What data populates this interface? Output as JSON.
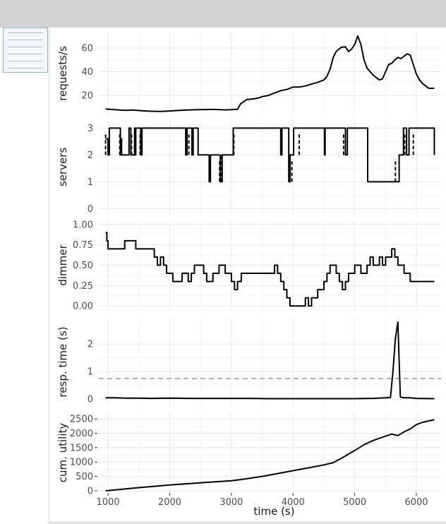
{
  "window": {
    "title": ""
  },
  "chart_data": [
    {
      "type": "line",
      "id": "requests",
      "ylabel": "requests/s",
      "yticks": [
        20,
        40,
        60
      ],
      "ylim": [
        4,
        73
      ],
      "x": [
        960,
        1100,
        1200,
        1300,
        1400,
        1500,
        1600,
        1700,
        1800,
        1900,
        2000,
        2100,
        2200,
        2300,
        2400,
        2500,
        2600,
        2700,
        2800,
        2900,
        3000,
        3100,
        3150,
        3250,
        3350,
        3450,
        3500,
        3600,
        3700,
        3800,
        3900,
        4000,
        4100,
        4200,
        4300,
        4400,
        4500,
        4550,
        4600,
        4650,
        4700,
        4780,
        4850,
        4900,
        4950,
        5000,
        5050,
        5100,
        5150,
        5200,
        5250,
        5300,
        5350,
        5400,
        5450,
        5500,
        5550,
        5600,
        5650,
        5700,
        5750,
        5800,
        5850,
        5900,
        6000,
        6050,
        6100,
        6150,
        6200,
        6290
      ],
      "y": [
        8.5,
        8.1,
        7.6,
        7.4,
        7.7,
        7.3,
        6.9,
        6.7,
        6.5,
        6.6,
        6.9,
        7.2,
        7.5,
        7.7,
        7.9,
        8.0,
        8.1,
        8.2,
        8.0,
        7.8,
        8.0,
        8.3,
        13,
        16.5,
        17,
        18,
        19,
        20,
        22,
        24,
        25,
        27,
        27,
        28,
        29.5,
        31,
        33,
        36,
        42,
        52,
        57,
        60.5,
        61,
        57,
        59,
        63,
        70,
        63,
        50,
        43,
        40,
        37,
        35,
        33,
        34,
        40,
        46,
        47,
        50,
        52,
        51,
        53,
        55,
        54,
        38,
        33,
        30,
        28,
        26,
        26
      ],
      "xticks": [
        1000,
        2000,
        3000,
        4000,
        5000,
        6000
      ],
      "xlim": [
        850,
        6400
      ]
    },
    {
      "type": "line",
      "id": "servers",
      "ylabel": "servers",
      "yticks": [
        0,
        1,
        2,
        3
      ],
      "ylim": [
        -0.2,
        3.3
      ],
      "step": true,
      "x": [
        960,
        1000,
        1020,
        1200,
        1220,
        1220,
        1340,
        1370,
        1430,
        1440,
        1450,
        1530,
        1550,
        2260,
        2280,
        2360,
        2380,
        2460,
        2640,
        2660,
        2820,
        2850,
        3030,
        3040,
        3060,
        3050,
        3060,
        3800,
        3820,
        3930,
        3950,
        4010,
        4030,
        4090,
        4510,
        4520,
        4540,
        4850,
        4880,
        4890,
        4920,
        5210,
        5240,
        5700,
        5720,
        5770,
        5790,
        5840,
        5860,
        5880,
        6290
      ],
      "y": [
        2.6,
        2,
        3,
        2,
        2.6,
        2,
        3,
        2,
        3,
        2,
        3,
        2,
        3,
        2,
        3,
        2,
        3,
        2,
        1,
        2,
        1,
        2,
        3,
        3,
        3,
        3,
        3,
        2,
        3,
        1,
        2,
        3,
        3,
        3,
        2,
        3,
        3,
        2,
        3,
        3,
        3,
        1,
        1,
        1,
        2,
        2,
        3,
        2,
        2,
        3,
        2
      ],
      "dashed": [
        {
          "x": 960,
          "y1": 2.0,
          "y2": 2.85
        },
        {
          "x": 1190,
          "y1": 2.0,
          "y2": 2.85
        },
        {
          "x": 1380,
          "y1": 2.0,
          "y2": 2.85
        },
        {
          "x": 1520,
          "y1": 2.0,
          "y2": 2.85
        },
        {
          "x": 2310,
          "y1": 2.0,
          "y2": 2.85
        },
        {
          "x": 2810,
          "y1": 1.0,
          "y2": 1.85
        },
        {
          "x": 2840,
          "y1": 1.0,
          "y2": 2.0
        },
        {
          "x": 3040,
          "y1": 2.0,
          "y2": 2.85
        },
        {
          "x": 3980,
          "y1": 1.0,
          "y2": 1.85
        },
        {
          "x": 4100,
          "y1": 2.0,
          "y2": 2.85
        },
        {
          "x": 4820,
          "y1": 2.0,
          "y2": 2.85
        },
        {
          "x": 5660,
          "y1": 1.0,
          "y2": 1.85
        },
        {
          "x": 5810,
          "y1": 2.0,
          "y2": 2.85
        },
        {
          "x": 5950,
          "y1": 2.0,
          "y2": 2.85
        }
      ],
      "xticks": [
        1000,
        2000,
        3000,
        4000,
        5000,
        6000
      ],
      "xlim": [
        850,
        6400
      ]
    },
    {
      "type": "line",
      "id": "dimmer",
      "ylabel": "dimmer",
      "yticks": [
        0.0,
        0.25,
        0.5,
        0.75,
        1.0
      ],
      "yticklabels": [
        "0.00",
        "0.25",
        "0.50",
        "0.75",
        "1.00"
      ],
      "ylim": [
        -0.05,
        1.05
      ],
      "step": true,
      "x": [
        960,
        980,
        1000,
        1270,
        1450,
        1750,
        1800,
        1850,
        1900,
        1950,
        2050,
        2200,
        2300,
        2350,
        2400,
        2550,
        2600,
        2700,
        2800,
        2900,
        3000,
        3050,
        3100,
        3160,
        3700,
        3750,
        3800,
        3850,
        3900,
        3950,
        4050,
        4200,
        4250,
        4300,
        4400,
        4500,
        4550,
        4600,
        4700,
        4750,
        4800,
        4850,
        4900,
        5000,
        5100,
        5200,
        5250,
        5300,
        5400,
        5450,
        5500,
        5600,
        5650,
        5700,
        5800,
        5900,
        6000,
        6100,
        6200,
        6290
      ],
      "y": [
        0.9,
        0.8,
        0.7,
        0.8,
        0.7,
        0.6,
        0.5,
        0.6,
        0.5,
        0.4,
        0.3,
        0.4,
        0.3,
        0.4,
        0.5,
        0.4,
        0.3,
        0.4,
        0.5,
        0.4,
        0.3,
        0.2,
        0.3,
        0.4,
        0.5,
        0.4,
        0.3,
        0.2,
        0.1,
        0.0,
        0.0,
        0.1,
        0.0,
        0.1,
        0.2,
        0.3,
        0.4,
        0.5,
        0.4,
        0.3,
        0.2,
        0.3,
        0.4,
        0.5,
        0.4,
        0.5,
        0.6,
        0.5,
        0.6,
        0.5,
        0.6,
        0.7,
        0.6,
        0.5,
        0.4,
        0.3,
        0.3,
        0.3,
        0.3,
        0.3
      ],
      "xticks": [
        1000,
        2000,
        3000,
        4000,
        5000,
        6000
      ],
      "xlim": [
        850,
        6400
      ]
    },
    {
      "type": "line",
      "id": "resp",
      "ylabel": "resp. time (s)",
      "yticks": [
        0,
        1,
        2
      ],
      "ylim": [
        -0.25,
        2.95
      ],
      "threshold": 0.75,
      "x": [
        960,
        1100,
        1300,
        1500,
        1700,
        2000,
        2300,
        2600,
        3000,
        3300,
        3600,
        4000,
        4300,
        4600,
        5000,
        5300,
        5500,
        5580,
        5620,
        5660,
        5700,
        5740,
        5800,
        5900,
        6000,
        6290
      ],
      "y": [
        0.05,
        0.05,
        0.04,
        0.04,
        0.03,
        0.04,
        0.03,
        0.03,
        0.03,
        0.03,
        0.02,
        0.02,
        0.02,
        0.02,
        0.02,
        0.03,
        0.05,
        0.06,
        1.0,
        2.2,
        2.8,
        0.08,
        0.05,
        0.05,
        0.03,
        0.02
      ],
      "xticks": [
        1000,
        2000,
        3000,
        4000,
        5000,
        6000
      ],
      "xlim": [
        850,
        6400
      ]
    },
    {
      "type": "line",
      "id": "utility",
      "ylabel": "cum. utility",
      "xlabel": "time (s)",
      "yticks": [
        0,
        500,
        1000,
        1500,
        2000,
        2500
      ],
      "ylim": [
        -50,
        2700
      ],
      "x": [
        960,
        1500,
        2000,
        2500,
        3000,
        3150,
        3500,
        4000,
        4500,
        4650,
        4800,
        5000,
        5150,
        5300,
        5500,
        5600,
        5700,
        5800,
        5900,
        6000,
        6100,
        6290
      ],
      "y": [
        0,
        110,
        200,
        280,
        350,
        390,
        500,
        700,
        900,
        980,
        1150,
        1400,
        1600,
        1750,
        1900,
        1970,
        1920,
        2050,
        2150,
        2300,
        2380,
        2470
      ],
      "xticks": [
        1000,
        2000,
        3000,
        4000,
        5000,
        6000
      ],
      "xticklabels": [
        "1000",
        "2000",
        "3000",
        "4000",
        "5000",
        "6000"
      ],
      "xlim": [
        850,
        6400
      ]
    }
  ]
}
